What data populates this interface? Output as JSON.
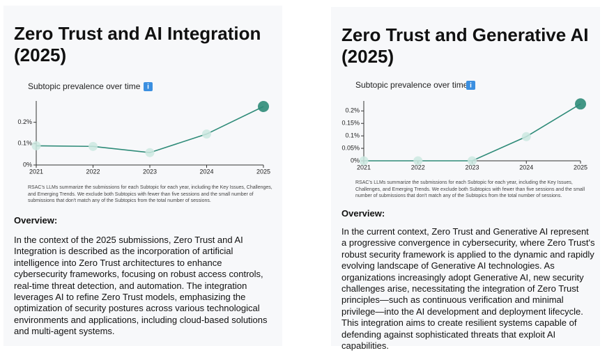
{
  "cards": [
    {
      "title": "Zero Trust and AI Integration (2025)",
      "note": "RSAC's LLMs summarize the submissions for each Subtopic for each year, including the Key Issues, Challenges, and Emerging Trends. We exclude both Subtopics with fewer than five sessions and the small number of submissions that don't match any of the Subtopics from the total number of sessions.",
      "overview_heading": "Overview:",
      "overview": "In the context of the 2025 submissions, Zero Trust and AI Integration is described as the incorporation of artificial intelligence into Zero Trust architectures to enhance cybersecurity frameworks, focusing on robust access controls, real-time threat detection, and automation. The integration leverages AI to refine Zero Trust models, emphasizing the optimization of security postures across various technological environments and applications, including cloud-based solutions and multi-agent systems."
    },
    {
      "title": "Zero Trust and Generative AI (2025)",
      "note": "RSAC's LLMs summarize the submissions for each Subtopic for each year, including the Key Issues, Challenges, and Emerging Trends. We exclude both Subtopics with fewer than five sessions and the small number of submissions that don't match any of the Subtopics from the total number of sessions.",
      "overview_heading": "Overview:",
      "overview": "In the current context, Zero Trust and Generative AI represent a progressive convergence in cybersecurity, where Zero Trust's robust security framework is applied to the dynamic and rapidly evolving landscape of Generative AI technologies. As organizations increasingly adopt Generative AI, new security challenges arise, necessitating the integration of Zero Trust principles—such as continuous verification and minimal privilege—into the AI development and deployment lifecycle. This integration aims to create resilient systems capable of defending against sophisticated threats that exploit AI capabilities."
    }
  ],
  "chart_data": [
    {
      "type": "line",
      "title": "Subtopic prevalence over time",
      "categories": [
        "2021",
        "2022",
        "2023",
        "2024",
        "2025"
      ],
      "values": [
        0.09,
        0.087,
        0.058,
        0.145,
        0.274
      ],
      "color": "#2e8b78",
      "marker_color": "#cde9e1",
      "ylim": [
        0,
        0.3
      ],
      "yticks": [
        {
          "value": 0,
          "label": "0%"
        },
        {
          "value": 0.1,
          "label": "0.1%"
        },
        {
          "value": 0.2,
          "label": "0.2%"
        }
      ]
    },
    {
      "type": "line",
      "title": "Subtopic prevalence over time",
      "categories": [
        "2021",
        "2022",
        "2023",
        "2024",
        "2025"
      ],
      "values": [
        0,
        0,
        0,
        0.097,
        0.228
      ],
      "color": "#2e8b78",
      "marker_color": "#cde9e1",
      "ylim": [
        0,
        0.24
      ],
      "yticks": [
        {
          "value": 0,
          "label": "0%"
        },
        {
          "value": 0.05,
          "label": "0.05%"
        },
        {
          "value": 0.1,
          "label": "0.1%"
        },
        {
          "value": 0.15,
          "label": "0.15%"
        },
        {
          "value": 0.2,
          "label": "0.2%"
        }
      ]
    }
  ]
}
